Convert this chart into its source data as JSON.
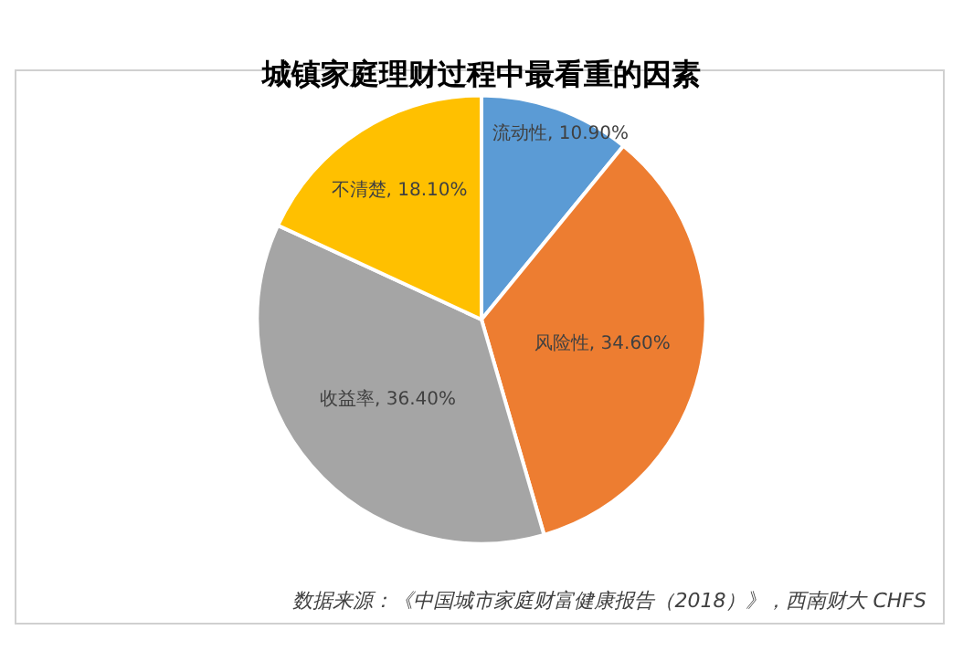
{
  "chart_data": {
    "type": "pie",
    "title": "城镇家庭理财过程中最看重的因素",
    "categories": [
      "流动性",
      "风险性",
      "收益率",
      "不清楚"
    ],
    "values": [
      10.9,
      34.6,
      36.4,
      18.1
    ],
    "value_labels": [
      "10.90%",
      "34.60%",
      "36.40%",
      "18.10%"
    ],
    "colors": [
      "#5b9bd5",
      "#ed7d31",
      "#a5a5a5",
      "#ffc000"
    ],
    "annotations": [
      "数据来源：《中国城市家庭财富健康报告（2018）》，西南财大 CHFS"
    ],
    "legend": false
  }
}
